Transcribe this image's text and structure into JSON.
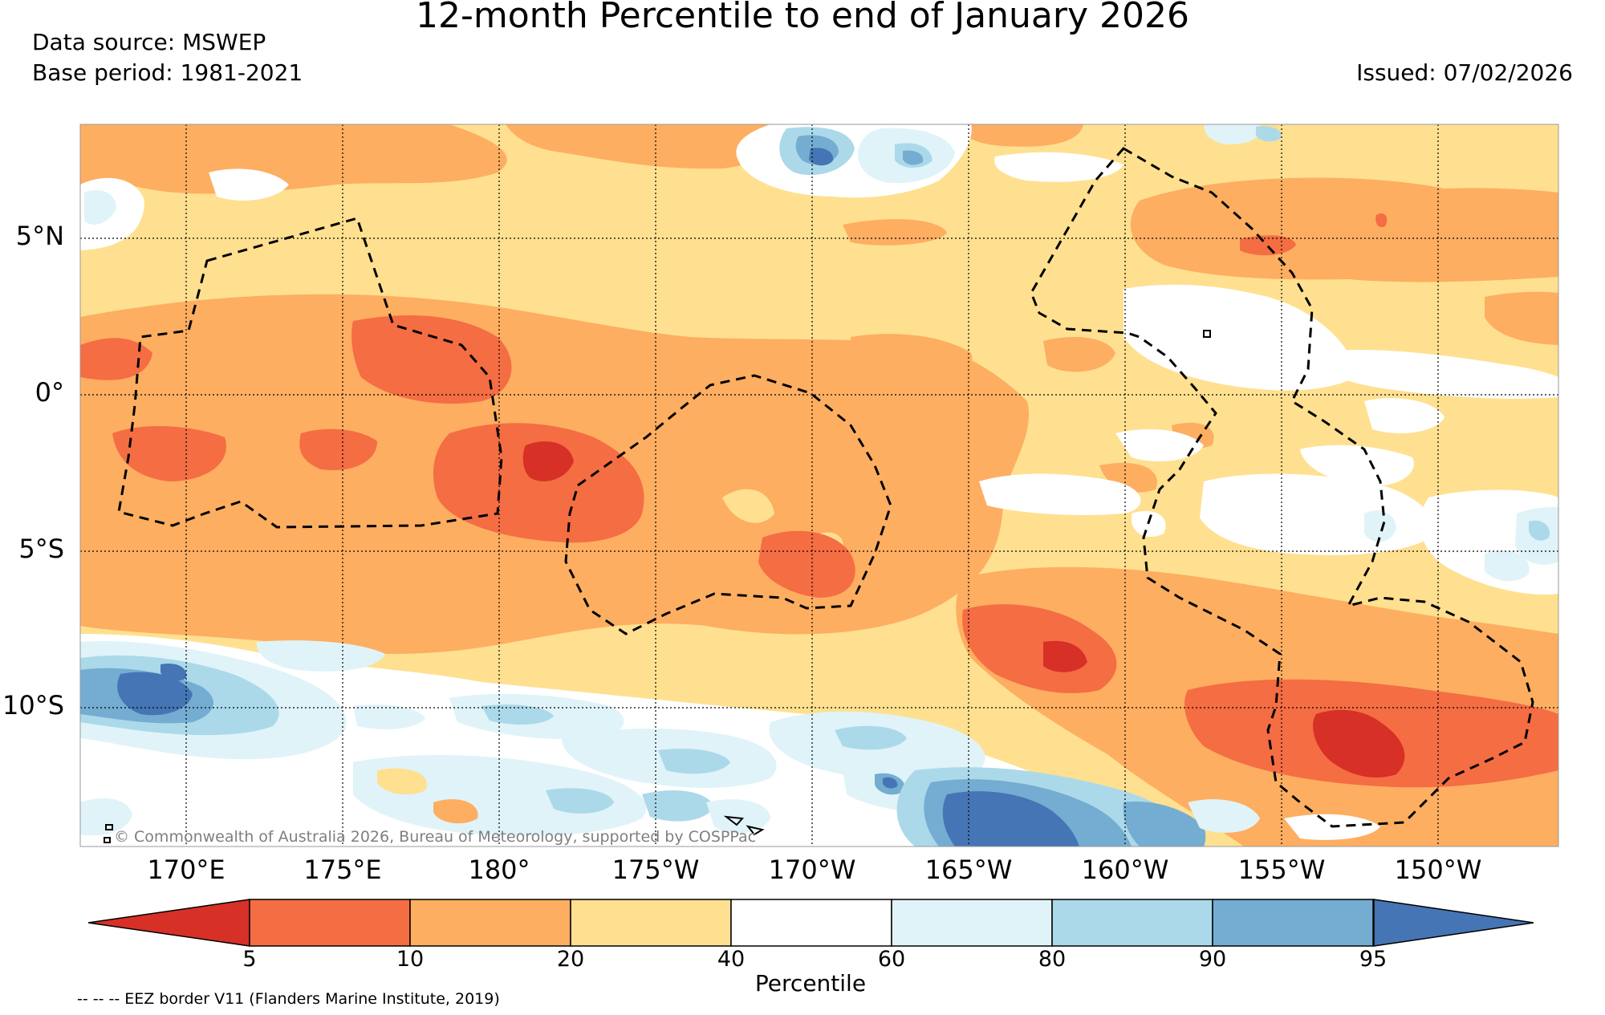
{
  "title": "12-month Percentile to end of January 2026",
  "data_source": "Data source: MSWEP",
  "base_period": "Base period: 1981-2021",
  "issued": "Issued: 07/02/2026",
  "lat_labels": [
    "5°N",
    "0°",
    "5°S",
    "10°S"
  ],
  "lon_labels": [
    "170°E",
    "175°E",
    "180°",
    "175°W",
    "170°W",
    "165°W",
    "160°W",
    "155°W",
    "150°W"
  ],
  "copyright": "© Commonwealth of Australia 2026, Bureau of Meteorology, supported by COSPPac",
  "colorbar": {
    "label": "Percentile",
    "ticks": [
      "5",
      "10",
      "20",
      "40",
      "60",
      "80",
      "90",
      "95"
    ],
    "colors": [
      "#d73027",
      "#f46d43",
      "#fdae61",
      "#fee090",
      "#ffffff",
      "#e0f3f8",
      "#abd9e9",
      "#74add1",
      "#4575b4"
    ]
  },
  "legend_note": "-- -- -- EEZ border V11 (Flanders Marine Institute, 2019)",
  "map_extent": {
    "lon_min": 166.7,
    "lon_max": -146.8,
    "lat_min": -14.2,
    "lat_max": 8.8
  }
}
